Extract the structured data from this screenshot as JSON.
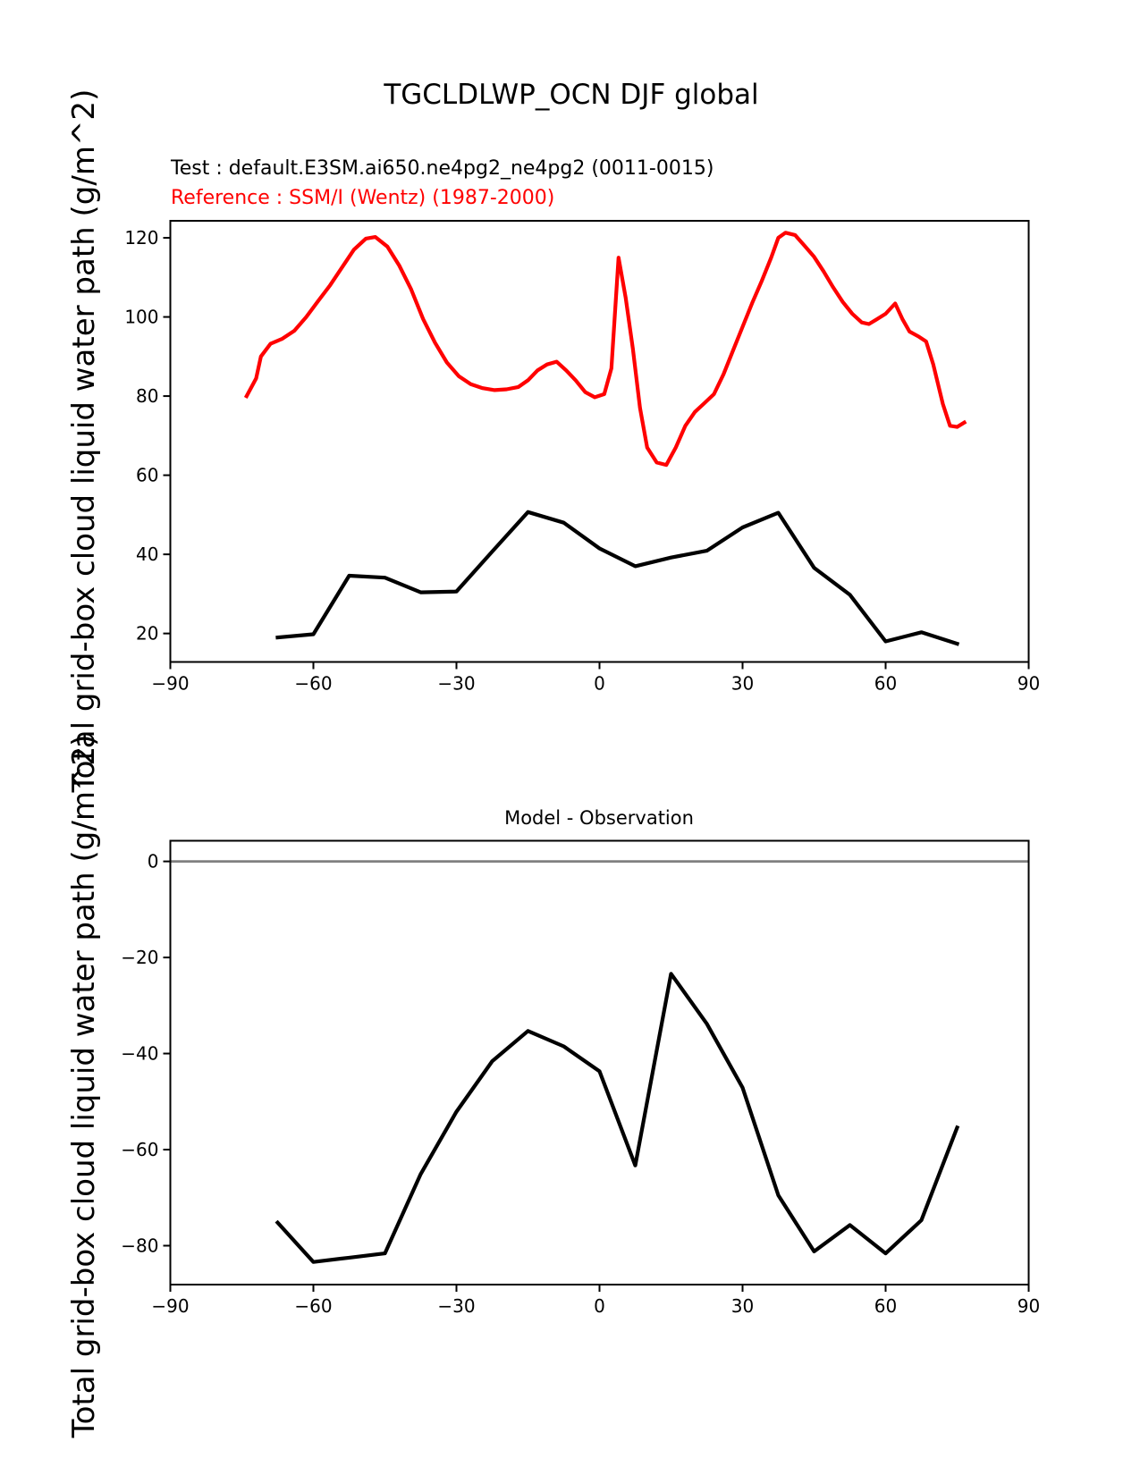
{
  "header": {
    "title": "TGCLDLWP_OCN DJF global",
    "test_label": "Test : default.E3SM.ai650.ne4pg2_ne4pg2 (0011-0015)",
    "reference_label": "Reference : SSM/I (Wentz) (1987-2000)"
  },
  "y_axis_label": "Total grid-box cloud liquid water path (g/m^2)",
  "colors": {
    "test_line": "#000000",
    "reference_line": "#ff0000",
    "zero_line": "#808080",
    "axis": "#000000"
  },
  "chart_data": [
    {
      "type": "line",
      "title": "TGCLDLWP_OCN DJF global",
      "xlabel": "",
      "ylabel": "Total grid-box cloud liquid water path (g/m^2)",
      "xlim": [
        -90,
        90
      ],
      "ylim": [
        12.8,
        124.3
      ],
      "xticks": [
        -90,
        -60,
        -30,
        0,
        30,
        60,
        90
      ],
      "xtick_labels": [
        "−90",
        "−60",
        "−30",
        "0",
        "30",
        "60",
        "90"
      ],
      "yticks": [
        20,
        40,
        60,
        80,
        100,
        120
      ],
      "ytick_labels": [
        "20",
        "40",
        "60",
        "80",
        "100",
        "120"
      ],
      "grid": false,
      "legend_position": "none",
      "series": [
        {
          "name": "Reference : SSM/I (Wentz) (1987-2000)",
          "color": "#ff0000",
          "x": [
            -74,
            -72,
            -71,
            -69,
            -66.5,
            -64,
            -61.5,
            -59,
            -56.5,
            -54,
            -51.5,
            -49,
            -47,
            -44.5,
            -42,
            -39.5,
            -37,
            -34.5,
            -32,
            -29.5,
            -27,
            -24.5,
            -22,
            -19.5,
            -17,
            -15,
            -13,
            -11,
            -9,
            -7,
            -5,
            -3,
            -1,
            1,
            2.5,
            4,
            5.5,
            7,
            8.5,
            10,
            12,
            14,
            16,
            18,
            20,
            22,
            24,
            26,
            28,
            30,
            32,
            34,
            36,
            37.5,
            39,
            41,
            43,
            45,
            47,
            49,
            51,
            53,
            55,
            56.5,
            58,
            60,
            62,
            63.5,
            65,
            67,
            68.5,
            70,
            72,
            73.5,
            75,
            76.5
          ],
          "y": [
            80,
            84.5,
            90,
            93.2,
            94.5,
            96.5,
            100,
            104,
            108,
            112.5,
            117,
            119.8,
            120.2,
            117.8,
            113,
            107,
            99.5,
            93.5,
            88.5,
            85,
            83,
            82,
            81.5,
            81.7,
            82.3,
            84,
            86.5,
            88,
            88.7,
            86.5,
            84,
            81,
            79.7,
            80.5,
            87,
            115,
            104.8,
            92,
            77,
            67,
            63.2,
            62.6,
            67,
            72.5,
            76,
            78.2,
            80.5,
            85.5,
            91.5,
            97.5,
            103.5,
            109,
            115,
            120,
            121.3,
            120.7,
            118,
            115.2,
            111.5,
            107.5,
            103.8,
            100.8,
            98.6,
            98.2,
            99.3,
            100.8,
            103.4,
            99.5,
            96.3,
            95,
            93.8,
            88,
            78,
            72.5,
            72.2,
            73.3
          ]
        },
        {
          "name": "Test : default.E3SM.ai650.ne4pg2_ne4pg2 (0011-0015)",
          "color": "#000000",
          "x": [
            -67.5,
            -60,
            -52.5,
            -45,
            -37.5,
            -30,
            -22.5,
            -15,
            -7.5,
            0,
            7.5,
            15,
            22.5,
            30,
            37.5,
            45,
            52.5,
            60,
            67.5,
            75
          ],
          "y": [
            19,
            19.8,
            34.6,
            34.1,
            30.4,
            30.6,
            40.7,
            50.7,
            48.0,
            41.5,
            37.0,
            39.2,
            40.9,
            46.8,
            50.5,
            36.6,
            29.8,
            18.0,
            20.3,
            17.4
          ]
        }
      ]
    },
    {
      "type": "line",
      "title": "Model - Observation",
      "xlabel": "",
      "ylabel": "Total grid-box cloud liquid water path (g/m^2)",
      "xlim": [
        -90,
        90
      ],
      "ylim": [
        -88.1,
        4.3
      ],
      "xticks": [
        -90,
        -60,
        -30,
        0,
        30,
        60,
        90
      ],
      "xtick_labels": [
        "−90",
        "−60",
        "−30",
        "0",
        "30",
        "60",
        "90"
      ],
      "yticks": [
        0,
        -20,
        -40,
        -60,
        -80
      ],
      "ytick_labels": [
        "0",
        "−20",
        "−40",
        "−60",
        "−80"
      ],
      "grid": false,
      "legend_position": "none",
      "zero_line": true,
      "zero_line_color": "#808080",
      "series": [
        {
          "name": "Model - Observation difference",
          "color": "#000000",
          "x": [
            -67.5,
            -60,
            -52.5,
            -45,
            -37.5,
            -30,
            -22.5,
            -15,
            -7.5,
            0,
            7.5,
            15,
            22.5,
            30,
            37.5,
            45,
            52.5,
            60,
            67.5,
            75
          ],
          "y": [
            -75.2,
            -83.4,
            -82.5,
            -81.6,
            -65.1,
            -52.1,
            -41.6,
            -35.3,
            -38.5,
            -43.7,
            -63.3,
            -23.4,
            -33.8,
            -47.1,
            -69.5,
            -81.2,
            -75.7,
            -81.6,
            -74.7,
            -55.4
          ]
        }
      ]
    }
  ]
}
